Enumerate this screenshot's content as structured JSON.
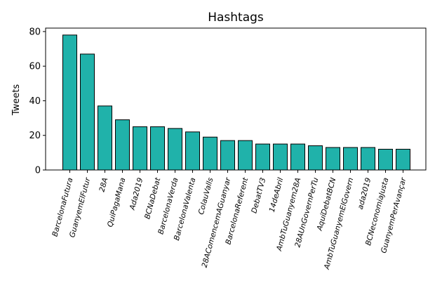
{
  "chart_data": {
    "type": "bar",
    "title": "Hashtags",
    "xlabel": "",
    "ylabel": "Tweets",
    "ylim": [
      0,
      82
    ],
    "yticks": [
      "0",
      "20",
      "40",
      "60",
      "80"
    ],
    "grid": false,
    "bar_color": "#20b2aa",
    "edge_color": "#000000",
    "categories": [
      "BarcelonaFutura",
      "GuanyemElFutur",
      "28A",
      "QuiPagaMana",
      "Ada2019",
      "BCNaDebat",
      "BarcelonaVerda",
      "BarcelonaValenta",
      "ColauValls",
      "28AComencemAGuanyar",
      "BarcelonaReferent",
      "DebatTV3",
      "14deAbril",
      "AmbTuGuanyem28A",
      "28AUnGovernPerTu",
      "AquíDebatBCN",
      "AmbTuGuanyemElGovern",
      "ada2019",
      "BCNeconomiaJusta",
      "GuanyemPerAvançar"
    ],
    "values": [
      78,
      67,
      37,
      29,
      25,
      25,
      24,
      22,
      19,
      17,
      17,
      15,
      15,
      15,
      14,
      13,
      13,
      13,
      12,
      12
    ]
  }
}
